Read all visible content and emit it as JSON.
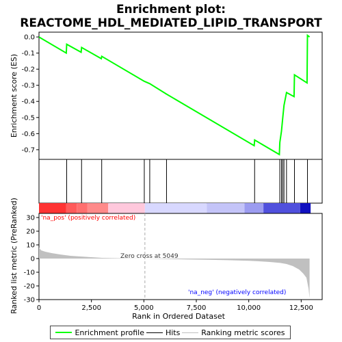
{
  "chart_data": {
    "type": "line",
    "title_line1": "Enrichment plot:",
    "title_line2": "REACTOME_HDL_MEDIATED_LIPID_TRANSPORT",
    "xlabel": "Rank in Ordered Dataset",
    "ylabel_top": "Enrichment score (ES)",
    "ylabel_bottom": "Ranked list metric (PreRanked)",
    "xlim": [
      0,
      13500
    ],
    "es_ylim": [
      -0.76,
      0.03
    ],
    "metric_ylim": [
      -30,
      33
    ],
    "x_ticks": [
      0,
      2500,
      5000,
      7500,
      10000,
      12500
    ],
    "x_tick_labels": [
      "0",
      "2,500",
      "5,000",
      "7,500",
      "10,000",
      "12,500"
    ],
    "es_ticks": [
      0.0,
      -0.1,
      -0.2,
      -0.3,
      -0.4,
      -0.5,
      -0.6,
      -0.7
    ],
    "es_tick_labels": [
      "0.0",
      "-0.1",
      "-0.2",
      "-0.3",
      "-0.4",
      "-0.5",
      "-0.6",
      "-0.7"
    ],
    "metric_ticks": [
      30,
      20,
      10,
      0,
      -10,
      -20,
      -30
    ],
    "metric_tick_labels": [
      "30",
      "20",
      "10",
      "0",
      "-10",
      "-20",
      "-30"
    ],
    "hits": [
      1320,
      2030,
      2990,
      5020,
      5280,
      6080,
      10280,
      11480,
      11560,
      11620,
      11680,
      11800,
      12180,
      12800
    ],
    "series": [
      {
        "name": "Enrichment profile",
        "color": "#00ff00",
        "x": [
          0,
          1300,
          1320,
          2010,
          2030,
          2970,
          2990,
          5020,
          5280,
          6080,
          10260,
          10280,
          11460,
          11480,
          11560,
          11620,
          11680,
          11800,
          12160,
          12180,
          12780,
          12800,
          12900
        ],
        "y": [
          0.0,
          -0.1,
          -0.045,
          -0.095,
          -0.065,
          -0.135,
          -0.12,
          -0.275,
          -0.29,
          -0.355,
          -0.675,
          -0.64,
          -0.73,
          -0.655,
          -0.585,
          -0.505,
          -0.425,
          -0.345,
          -0.37,
          -0.235,
          -0.285,
          0.01,
          0.0
        ]
      }
    ],
    "ranking_metric": {
      "name": "Ranking metric scores",
      "color": "#c0c0c0",
      "x": [
        0,
        100,
        300,
        600,
        1000,
        1500,
        2000,
        2500,
        3000,
        4000,
        5049,
        6000,
        7000,
        8000,
        9000,
        10000,
        10500,
        11000,
        11500,
        11800,
        12100,
        12400,
        12600,
        12750,
        12850,
        12900
      ],
      "y": [
        8,
        6,
        5,
        4,
        3,
        2,
        1.5,
        1,
        0.5,
        0.2,
        0,
        -0.3,
        -0.6,
        -0.9,
        -1.2,
        -1.6,
        -2,
        -2.5,
        -3.2,
        -4,
        -5.5,
        -8,
        -11,
        -14,
        -22,
        -29
      ]
    },
    "color_bar": [
      {
        "from": 0,
        "to": 1300,
        "color": "#ff3333"
      },
      {
        "from": 1300,
        "to": 1800,
        "color": "#ff5a5a"
      },
      {
        "from": 1800,
        "to": 2300,
        "color": "#ff6f6f"
      },
      {
        "from": 2300,
        "to": 3300,
        "color": "#ff8a8a"
      },
      {
        "from": 3300,
        "to": 5049,
        "color": "#ffc8dc"
      },
      {
        "from": 5049,
        "to": 8000,
        "color": "#d8d8ff"
      },
      {
        "from": 8000,
        "to": 9800,
        "color": "#c4c4f8"
      },
      {
        "from": 9800,
        "to": 10700,
        "color": "#9c9cf0"
      },
      {
        "from": 10700,
        "to": 12450,
        "color": "#5050dd"
      },
      {
        "from": 12450,
        "to": 12950,
        "color": "#1010c0"
      }
    ],
    "annotations": {
      "pos_label": "'na_pos' (positively correlated)",
      "neg_label": "'na_neg' (negatively correlated)",
      "zero_cross": "Zero cross at 5049",
      "zero_cross_x": 5049,
      "pos_color": "#ff0000",
      "neg_color": "#0000ff"
    },
    "legend": [
      {
        "label": "Enrichment profile",
        "color": "#00ff00"
      },
      {
        "label": "Hits",
        "color": "#000000"
      },
      {
        "label": "Ranking metric scores",
        "color": "#c0c0c0"
      }
    ]
  }
}
